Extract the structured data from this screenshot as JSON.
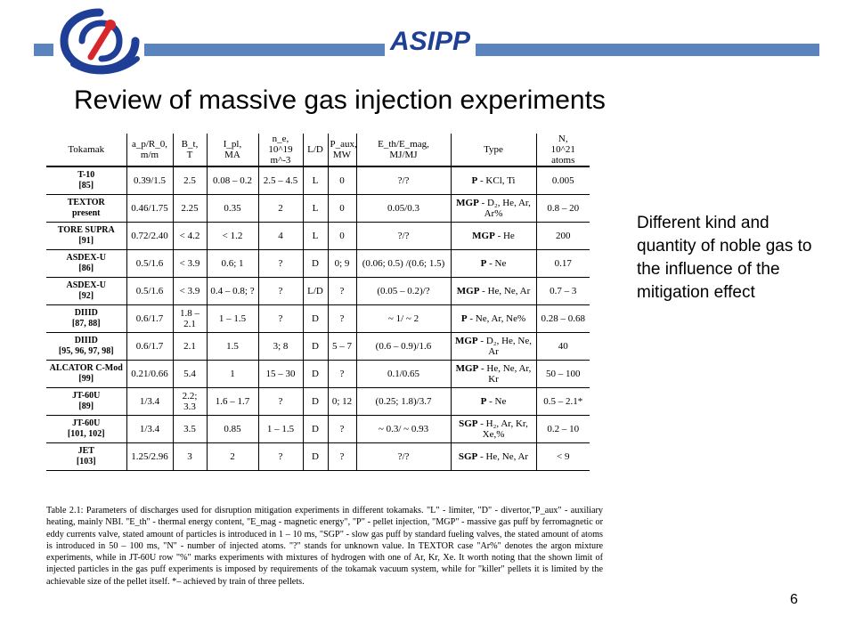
{
  "header": {
    "brand": "ASIPP",
    "colors": {
      "bar": "#5b83bd",
      "brand": "#1f3f96",
      "logo_red": "#d8262d"
    }
  },
  "title": "Review of massive gas injection experiments",
  "side_note": "Different kind and quantity of noble gas to the influence of the mitigation effect",
  "page_number": "6",
  "table": {
    "columns": [
      {
        "top": "Tokamak",
        "bottom": ""
      },
      {
        "top": "a_p/R_0,",
        "bottom": "m/m"
      },
      {
        "top": "B_t,",
        "bottom": "T"
      },
      {
        "top": "I_pl,",
        "bottom": "MA"
      },
      {
        "top": "n_e,",
        "bottom": "10^19 m^-3"
      },
      {
        "top": "L/D",
        "bottom": ""
      },
      {
        "top": "P_aux,",
        "bottom": "MW"
      },
      {
        "top": "E_th/E_mag,",
        "bottom": "MJ/MJ"
      },
      {
        "top": "Type",
        "bottom": ""
      },
      {
        "top": "N,",
        "bottom": "10^21 atoms"
      }
    ],
    "rows": [
      {
        "tokamak": "T-10",
        "ref": "[85]",
        "ratio": "0.39/1.5",
        "bt": "2.5",
        "ip": "0.08 – 0.2",
        "ne": "2.5 – 4.5",
        "ld": "L",
        "paux": "0",
        "eth": "?/?",
        "type_bold": "P",
        "type_rest": " - KCl, Ti",
        "n": "0.005"
      },
      {
        "tokamak": "TEXTOR",
        "ref": "present",
        "ratio": "0.46/1.75",
        "bt": "2.25",
        "ip": "0.35",
        "ne": "2",
        "ld": "L",
        "paux": "0",
        "eth": "0.05/0.3",
        "type_bold": "MGP",
        "type_rest": " - D₂, He, Ar, Ar%",
        "n": "0.8 – 20"
      },
      {
        "tokamak": "TORE SUPRA",
        "ref": "[91]",
        "ratio": "0.72/2.40",
        "bt": "< 4.2",
        "ip": "< 1.2",
        "ne": "4",
        "ld": "L",
        "paux": "0",
        "eth": "?/?",
        "type_bold": "MGP",
        "type_rest": " - He",
        "n": "200"
      },
      {
        "tokamak": "ASDEX-U",
        "ref": "[86]",
        "ratio": "0.5/1.6",
        "bt": "< 3.9",
        "ip": "0.6; 1",
        "ne": "?",
        "ld": "D",
        "paux": "0; 9",
        "eth": "(0.06; 0.5) /(0.6; 1.5)",
        "type_bold": "P",
        "type_rest": " - Ne",
        "n": "0.17"
      },
      {
        "tokamak": "ASDEX-U",
        "ref": "[92]",
        "ratio": "0.5/1.6",
        "bt": "< 3.9",
        "ip": "0.4 – 0.8; ?",
        "ne": "?",
        "ld": "L/D",
        "paux": "?",
        "eth": "(0.05 – 0.2)/?",
        "type_bold": "MGP",
        "type_rest": " - He, Ne, Ar",
        "n": "0.7 – 3"
      },
      {
        "tokamak": "DIIID",
        "ref": "[87, 88]",
        "ratio": "0.6/1.7",
        "bt": "1.8 – 2.1",
        "ip": "1 – 1.5",
        "ne": "?",
        "ld": "D",
        "paux": "?",
        "eth": "~ 1/ ~ 2",
        "type_bold": "P",
        "type_rest": " - Ne, Ar, Ne%",
        "n": "0.28 – 0.68"
      },
      {
        "tokamak": "DIIID",
        "ref": "[95, 96, 97, 98]",
        "ratio": "0.6/1.7",
        "bt": "2.1",
        "ip": "1.5",
        "ne": "3; 8",
        "ld": "D",
        "paux": "5 – 7",
        "eth": "(0.6 – 0.9)/1.6",
        "type_bold": "MGP",
        "type_rest": " - D₂, He, Ne, Ar",
        "n": "40"
      },
      {
        "tokamak": "ALCATOR C-Mod",
        "ref": "[99]",
        "ratio": "0.21/0.66",
        "bt": "5.4",
        "ip": "1",
        "ne": "15 – 30",
        "ld": "D",
        "paux": "?",
        "eth": "0.1/0.65",
        "type_bold": "MGP",
        "type_rest": " - He, Ne, Ar, Kr",
        "n": "50 – 100"
      },
      {
        "tokamak": "JT-60U",
        "ref": "[89]",
        "ratio": "1/3.4",
        "bt": "2.2; 3.3",
        "ip": "1.6 – 1.7",
        "ne": "?",
        "ld": "D",
        "paux": "0; 12",
        "eth": "(0.25; 1.8)/3.7",
        "type_bold": "P",
        "type_rest": " - Ne",
        "n": "0.5 – 2.1*"
      },
      {
        "tokamak": "JT-60U",
        "ref": "[101, 102]",
        "ratio": "1/3.4",
        "bt": "3.5",
        "ip": "0.85",
        "ne": "1 – 1.5",
        "ld": "D",
        "paux": "?",
        "eth": "~ 0.3/ ~ 0.93",
        "type_bold": "SGP",
        "type_rest": " - H₂, Ar, Kr, Xe,%",
        "n": "0.2 – 10"
      },
      {
        "tokamak": "JET",
        "ref": "[103]",
        "ratio": "1.25/2.96",
        "bt": "3",
        "ip": "2",
        "ne": "?",
        "ld": "D",
        "paux": "?",
        "eth": "?/?",
        "type_bold": "SGP",
        "type_rest": " - He, Ne, Ar",
        "n": "< 9"
      }
    ]
  },
  "caption": "Table 2.1: Parameters of discharges used for disruption mitigation experiments in different tokamaks. \"L\" - limiter, \"D\" - divertor,\"P_aux\" - auxiliary heating, mainly NBI. \"E_th\" - thermal energy content, \"E_mag - magnetic energy\", \"P\" - pellet injection, \"MGP\" - massive gas puff by ferromagnetic or eddy currents valve, stated amount of particles is introduced in 1 – 10 ms, \"SGP\" - slow gas puff by standard fueling valves, the stated amount of atoms is introduced in 50 – 100 ms, \"N\" - number of injected atoms. \"?\" stands for unknown value. In TEXTOR case \"Ar%\" denotes the argon mixture experiments, while in JT-60U row \"%\" marks experiments with mixtures of hydrogen with one of Ar, Kr, Xe. It worth noting that the shown limit of injected particles in the gas puff experiments is imposed by requirements of the tokamak vacuum system, while for \"killer\" pellets it is limited by the achievable size of the pellet itself. *– achieved by train of three pellets."
}
